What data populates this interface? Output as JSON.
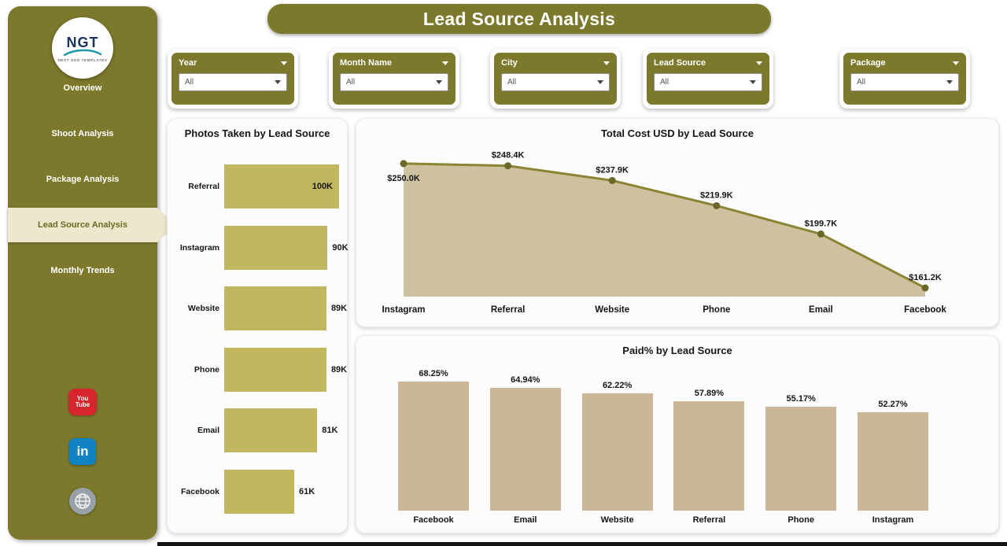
{
  "header": {
    "title": "Lead Source Analysis"
  },
  "sidebar": {
    "logo": {
      "title": "NGT",
      "subtitle": "NEXT GEN TEMPLATES"
    },
    "items": [
      {
        "label": "Overview",
        "active": false
      },
      {
        "label": "Shoot Analysis",
        "active": false
      },
      {
        "label": "Package Analysis",
        "active": false
      },
      {
        "label": "Lead Source Analysis",
        "active": true
      },
      {
        "label": "Monthly Trends",
        "active": false
      }
    ],
    "social_labels": {
      "youtube_top": "You",
      "youtube_bottom": "Tube",
      "linkedin": "in"
    }
  },
  "filters": [
    {
      "label": "Year",
      "value": "All"
    },
    {
      "label": "Month Name",
      "value": "All"
    },
    {
      "label": "City",
      "value": "All"
    },
    {
      "label": "Lead Source",
      "value": "All"
    },
    {
      "label": "Package",
      "value": "All"
    }
  ],
  "chart_data": [
    {
      "type": "bar",
      "orientation": "horizontal",
      "title": "Photos Taken by Lead Source",
      "categories": [
        "Referral",
        "Instagram",
        "Website",
        "Phone",
        "Email",
        "Facebook"
      ],
      "values": [
        100,
        90,
        89,
        89,
        81,
        61
      ],
      "value_labels": [
        "100K",
        "90K",
        "89K",
        "89K",
        "81K",
        "61K"
      ],
      "xlim": [
        0,
        100
      ],
      "bar_color": "#c0b75e"
    },
    {
      "type": "area",
      "title": "Total Cost USD by Lead Source",
      "categories": [
        "Instagram",
        "Referral",
        "Website",
        "Phone",
        "Email",
        "Facebook"
      ],
      "values": [
        250.0,
        248.4,
        237.9,
        219.9,
        199.7,
        161.2
      ],
      "value_labels": [
        "$250.0K",
        "$248.4K",
        "$237.9K",
        "$219.9K",
        "$199.7K",
        "$161.2K"
      ],
      "ylim": [
        155,
        255
      ],
      "fill_color": "#cdc1a0",
      "line_color": "#8a8433",
      "marker_color": "#6c6726"
    },
    {
      "type": "bar",
      "orientation": "vertical",
      "title": "Paid% by Lead Source",
      "categories": [
        "Facebook",
        "Email",
        "Website",
        "Referral",
        "Phone",
        "Instagram"
      ],
      "values": [
        68.25,
        64.94,
        62.22,
        57.89,
        55.17,
        52.27
      ],
      "value_labels": [
        "68.25%",
        "64.94%",
        "62.22%",
        "57.89%",
        "55.17%",
        "52.27%"
      ],
      "ylim": [
        0,
        70
      ],
      "bar_color": "#cbb795"
    }
  ],
  "colors": {
    "sidebar_olive": "#7d792c",
    "active_item_bg": "#ece7cd",
    "khaki_bar": "#c0b75e",
    "area_fill": "#cdc1a0",
    "area_line": "#8a8433",
    "tan_bar": "#cbb795",
    "youtube_red": "#d6252c",
    "linkedin_blue": "#1183c3"
  }
}
